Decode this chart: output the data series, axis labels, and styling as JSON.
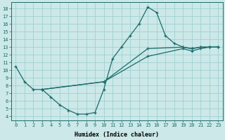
{
  "xlabel": "Humidex (Indice chaleur)",
  "bg_color": "#cce8e8",
  "grid_color": "#99cccc",
  "line_color": "#1a6b6b",
  "xlim": [
    -0.5,
    23.5
  ],
  "ylim": [
    3.5,
    18.8
  ],
  "xticks": [
    0,
    1,
    2,
    3,
    4,
    5,
    6,
    7,
    8,
    9,
    10,
    11,
    12,
    13,
    14,
    15,
    16,
    17,
    18,
    19,
    20,
    21,
    22,
    23
  ],
  "yticks": [
    4,
    5,
    6,
    7,
    8,
    9,
    10,
    11,
    12,
    13,
    14,
    15,
    16,
    17,
    18
  ],
  "curve1_x": [
    0,
    1,
    2,
    3,
    4,
    5,
    6,
    7,
    8,
    9,
    10,
    11,
    12,
    13,
    14,
    15,
    16,
    17,
    18,
    19,
    20,
    21,
    22,
    23
  ],
  "curve1_y": [
    10.5,
    8.5,
    7.5,
    7.5,
    6.5,
    5.5,
    4.8,
    4.3,
    4.3,
    4.5,
    7.5,
    11.5,
    13.0,
    14.5,
    16.0,
    18.2,
    17.5,
    14.5,
    13.5,
    13.0,
    12.8,
    13.0,
    13.0,
    13.0
  ],
  "curve2_x": [
    3,
    10,
    15,
    19,
    20,
    21,
    22,
    23
  ],
  "curve2_y": [
    7.5,
    8.5,
    12.8,
    13.0,
    12.8,
    13.0,
    13.0,
    13.0
  ],
  "curve3_x": [
    3,
    10,
    15,
    19,
    20,
    21,
    22,
    23
  ],
  "curve3_y": [
    7.5,
    8.5,
    11.8,
    12.8,
    12.5,
    12.8,
    13.0,
    13.0
  ]
}
